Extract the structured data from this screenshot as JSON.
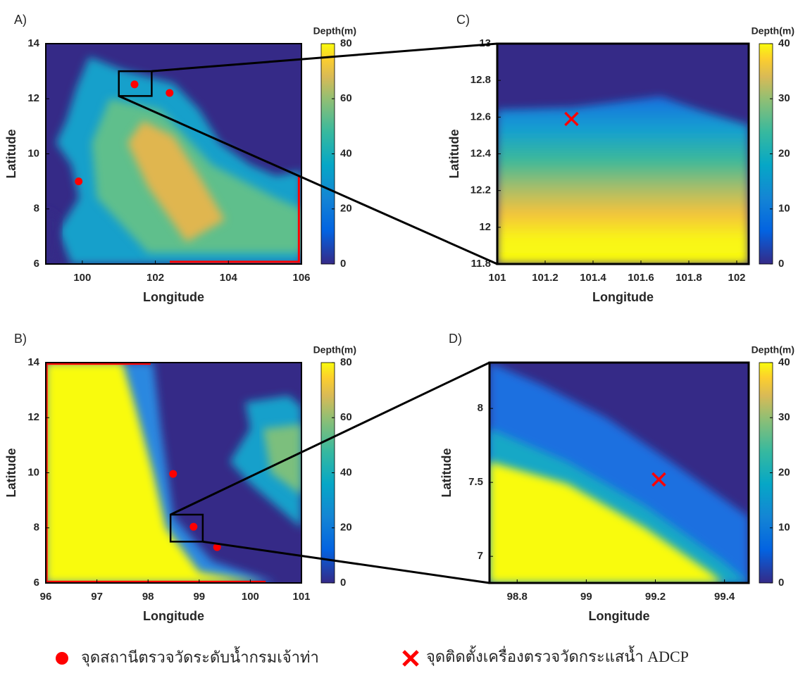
{
  "chart_data": [
    {
      "type": "heatmap",
      "panel_label": "A)",
      "xlabel": "Longitude",
      "ylabel": "Latitude",
      "xlim": [
        99,
        106
      ],
      "ylim": [
        6,
        14
      ],
      "xticks": [
        100,
        102,
        104,
        106
      ],
      "yticks": [
        6,
        8,
        10,
        12,
        14
      ],
      "colorbar": {
        "title": "Depth(m)",
        "lim": [
          0,
          80
        ],
        "ticks": [
          0,
          20,
          40,
          60,
          80
        ]
      },
      "stations": {
        "x": [
          101.43,
          102.39,
          99.9
        ],
        "y": [
          12.52,
          12.21,
          9.0
        ]
      },
      "zoom_box": {
        "x": [
          101,
          101.9
        ],
        "y": [
          12.1,
          13.0
        ]
      }
    },
    {
      "type": "heatmap",
      "panel_label": "B)",
      "xlabel": "Longitude",
      "ylabel": "Latitude",
      "xlim": [
        96,
        101
      ],
      "ylim": [
        6,
        14
      ],
      "xticks": [
        96,
        97,
        98,
        99,
        100,
        101
      ],
      "yticks": [
        6,
        8,
        10,
        12,
        14
      ],
      "colorbar": {
        "title": "Depth(m)",
        "lim": [
          0,
          80
        ],
        "ticks": [
          0,
          20,
          40,
          60,
          80
        ]
      },
      "stations": {
        "x": [
          98.49,
          98.89,
          99.35
        ],
        "y": [
          9.96,
          8.04,
          7.3
        ]
      },
      "zoom_box": {
        "x": [
          98.44,
          99.07
        ],
        "y": [
          7.5,
          8.48
        ]
      }
    },
    {
      "type": "heatmap",
      "panel_label": "C)",
      "xlabel": "Longitude",
      "ylabel": "Latitude",
      "xlim": [
        101,
        102.05
      ],
      "ylim": [
        11.8,
        13
      ],
      "xticks": [
        101,
        101.2,
        101.4,
        101.6,
        101.8,
        102
      ],
      "yticks": [
        11.8,
        12,
        12.2,
        12.4,
        12.6,
        12.8,
        13
      ],
      "colorbar": {
        "title": "Depth(m)",
        "lim": [
          0,
          40
        ],
        "ticks": [
          0,
          10,
          20,
          30,
          40
        ]
      },
      "adcp": {
        "x": [
          101.31
        ],
        "y": [
          12.59
        ]
      }
    },
    {
      "type": "heatmap",
      "panel_label": "D)",
      "xlabel": "Longitude",
      "ylabel": "Latitude",
      "xlim": [
        98.72,
        99.47
      ],
      "ylim": [
        6.82,
        8.31
      ],
      "xticks": [
        98.8,
        99,
        99.2,
        99.4
      ],
      "yticks": [
        7,
        7.5,
        8
      ],
      "colorbar": {
        "title": "Depth(m)",
        "lim": [
          0,
          40
        ],
        "ticks": [
          0,
          10,
          20,
          30,
          40
        ]
      },
      "adcp": {
        "x": [
          99.21
        ],
        "y": [
          7.52
        ]
      }
    }
  ],
  "legend": [
    {
      "name": "จุดสถานีตรวจวัดระดับน้ำกรมเจ้าท่า",
      "color": "#ff0000"
    },
    {
      "name": "จุดติดตั้งเครื่องตรวจวัดกระแสน้ำ ADCP",
      "color": "#ff0000"
    }
  ]
}
